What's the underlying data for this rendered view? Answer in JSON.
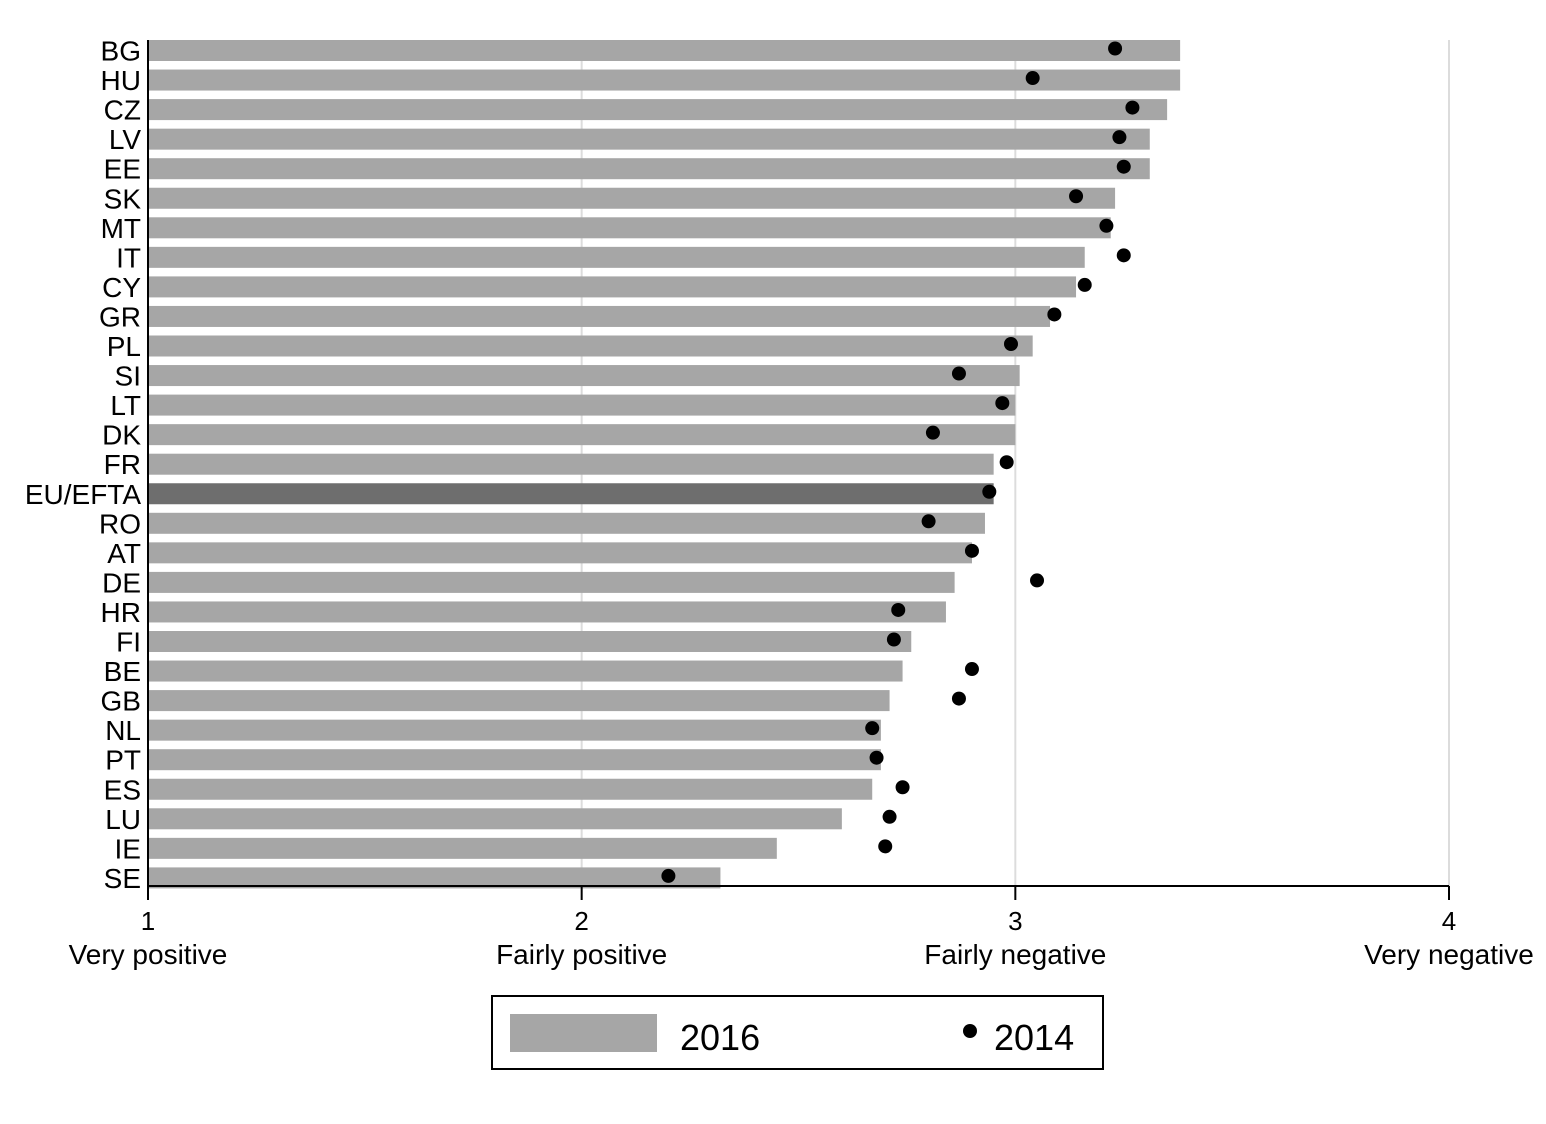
{
  "chart_data": {
    "type": "bar",
    "orientation": "horizontal",
    "categories": [
      "BG",
      "HU",
      "CZ",
      "LV",
      "EE",
      "SK",
      "MT",
      "IT",
      "CY",
      "GR",
      "PL",
      "SI",
      "LT",
      "DK",
      "FR",
      "EU/EFTA",
      "RO",
      "AT",
      "DE",
      "HR",
      "FI",
      "BE",
      "GB",
      "NL",
      "PT",
      "ES",
      "LU",
      "IE",
      "SE"
    ],
    "series": [
      {
        "name": "2016",
        "mark": "bar",
        "color": "#a6a6a6",
        "highlight": {
          "category": "EU/EFTA",
          "color": "#6e6e6e"
        },
        "values": [
          3.38,
          3.38,
          3.35,
          3.31,
          3.31,
          3.23,
          3.22,
          3.16,
          3.14,
          3.08,
          3.04,
          3.01,
          3.0,
          3.0,
          2.95,
          2.95,
          2.93,
          2.9,
          2.86,
          2.84,
          2.76,
          2.74,
          2.71,
          2.69,
          2.69,
          2.67,
          2.6,
          2.45,
          2.32
        ]
      },
      {
        "name": "2014",
        "mark": "dot",
        "color": "#000000",
        "values": [
          3.23,
          3.04,
          3.27,
          3.24,
          3.25,
          3.14,
          3.21,
          3.25,
          3.16,
          3.09,
          2.99,
          2.87,
          2.97,
          2.81,
          2.98,
          2.94,
          2.8,
          2.9,
          3.05,
          2.73,
          2.72,
          2.9,
          2.87,
          2.67,
          2.68,
          2.74,
          2.71,
          2.7,
          2.2
        ]
      }
    ],
    "xlim": [
      1,
      4
    ],
    "xticks": [
      {
        "value": 1,
        "label": "1",
        "description": "Very positive"
      },
      {
        "value": 2,
        "label": "2",
        "description": "Fairly positive"
      },
      {
        "value": 3,
        "label": "3",
        "description": "Fairly negative"
      },
      {
        "value": 4,
        "label": "4",
        "description": "Very negative"
      }
    ],
    "grid": "vertical",
    "legend": {
      "position": "bottom-center",
      "items": [
        "2016",
        "2014"
      ]
    },
    "title": "",
    "xlabel": "",
    "ylabel": ""
  }
}
